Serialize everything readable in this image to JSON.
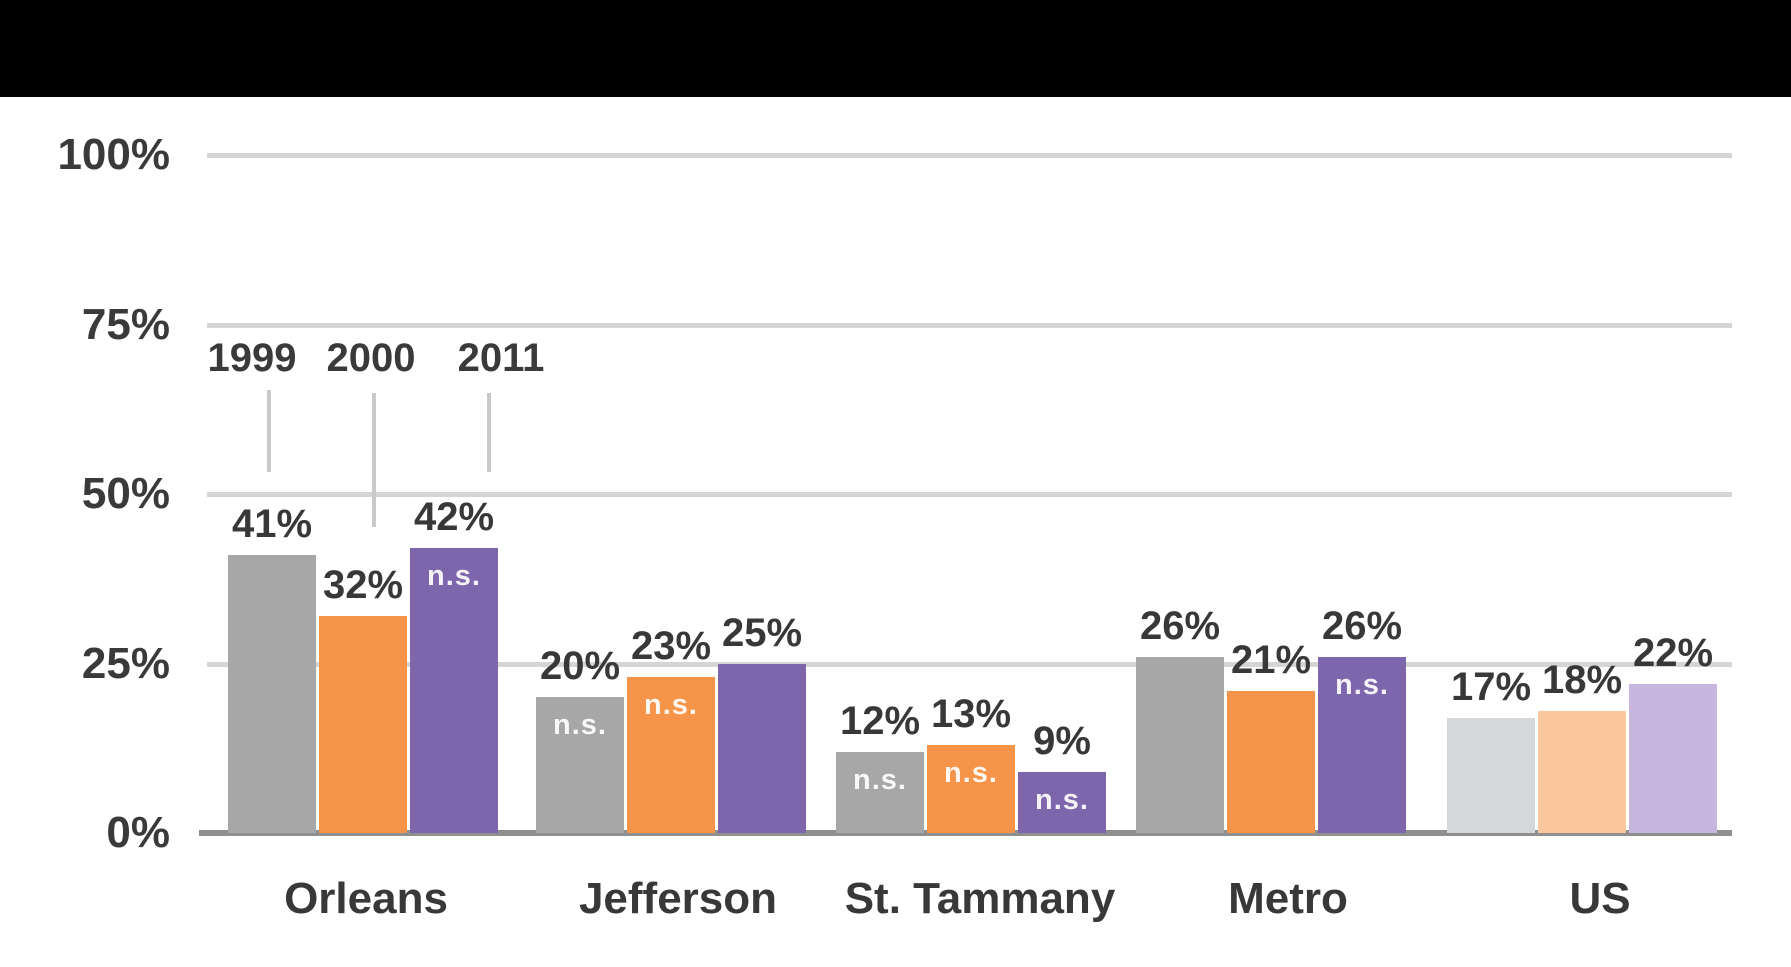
{
  "page": {
    "background_color": "#ffffff",
    "top_banner_color": "#000000"
  },
  "chart_data": {
    "type": "bar",
    "title": "",
    "categories": [
      "Orleans",
      "Jefferson",
      "St. Tammany",
      "Metro",
      "US"
    ],
    "series": [
      {
        "name": "1999",
        "values": [
          41,
          20,
          12,
          26,
          17
        ],
        "ns_flags": [
          false,
          true,
          true,
          false,
          false
        ],
        "color": "#a7a7a7",
        "muted_color": "#d5d7d9"
      },
      {
        "name": "2000",
        "values": [
          32,
          23,
          13,
          21,
          18
        ],
        "ns_flags": [
          false,
          true,
          true,
          false,
          false
        ],
        "color": "#f6954a",
        "muted_color": "#fbc79e"
      },
      {
        "name": "2011",
        "values": [
          42,
          25,
          9,
          26,
          22
        ],
        "ns_flags": [
          true,
          false,
          true,
          true,
          false
        ],
        "color": "#7d66ab",
        "muted_color": "#c7b6dd"
      }
    ],
    "muted_category": "US",
    "ns_annotation": "n.s.",
    "value_suffix": "%",
    "ylim": [
      0,
      100
    ],
    "grid": true,
    "y_axis": {
      "ticks": [
        {
          "label": "100%",
          "value": 100
        },
        {
          "label": "75%",
          "value": 75
        },
        {
          "label": "50%",
          "value": 50
        },
        {
          "label": "25%",
          "value": 25
        },
        {
          "label": "0%",
          "value": 0
        }
      ]
    },
    "legend": {
      "position": "callout-above-first-group",
      "labels": [
        "1999",
        "2000",
        "2011"
      ]
    },
    "colors": {
      "gridline": "#d5d5d5",
      "axis_line": "#8f8f8f",
      "text": "#383838",
      "ns_text": "#ffffff"
    }
  }
}
